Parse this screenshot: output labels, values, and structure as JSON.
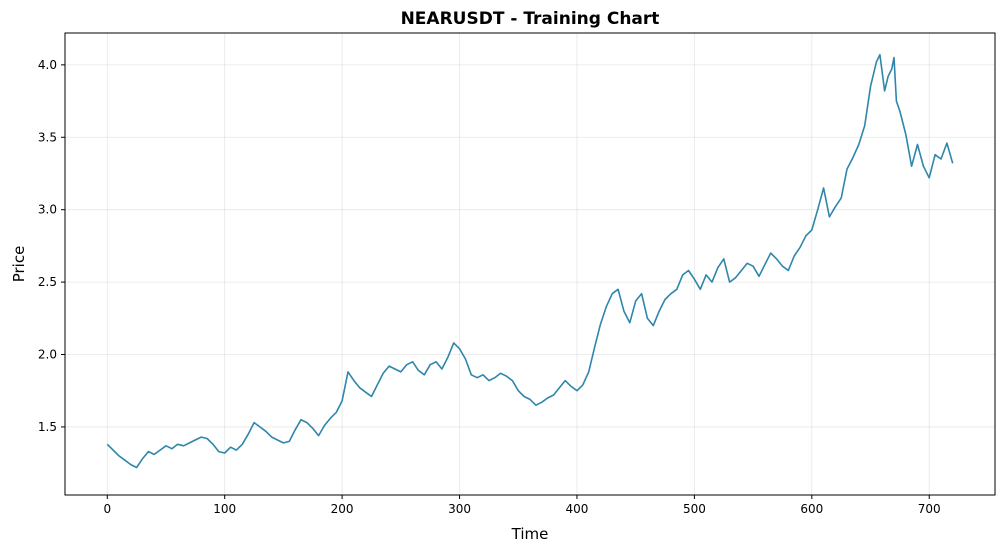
{
  "chart_data": {
    "type": "line",
    "title": "NEARUSDT - Training Chart",
    "xlabel": "Time",
    "ylabel": "Price",
    "xlim": [
      -36,
      756
    ],
    "ylim": [
      1.03,
      4.22
    ],
    "x_ticks": [
      0,
      100,
      200,
      300,
      400,
      500,
      600,
      700
    ],
    "y_ticks": [
      1.5,
      2.0,
      2.5,
      3.0,
      3.5,
      4.0
    ],
    "y_tick_labels": [
      "1.5",
      "2.0",
      "2.5",
      "3.0",
      "3.5",
      "4.0"
    ],
    "grid": true,
    "line_color": "#2e86ab",
    "series": [
      {
        "x": [
          0,
          5,
          10,
          15,
          20,
          25,
          30,
          35,
          40,
          45,
          50,
          55,
          60,
          65,
          70,
          75,
          80,
          85,
          90,
          95,
          100,
          105,
          110,
          115,
          120,
          125,
          130,
          135,
          140,
          145,
          150,
          155,
          160,
          165,
          170,
          175,
          180,
          185,
          190,
          195,
          200,
          205,
          210,
          215,
          220,
          225,
          230,
          235,
          240,
          245,
          250,
          255,
          260,
          265,
          270,
          275,
          280,
          285,
          290,
          295,
          300,
          305,
          310,
          315,
          320,
          325,
          330,
          335,
          340,
          345,
          350,
          355,
          360,
          365,
          370,
          375,
          380,
          385,
          390,
          395,
          400,
          405,
          410,
          415,
          420,
          425,
          430,
          435,
          440,
          445,
          450,
          455,
          460,
          465,
          470,
          475,
          480,
          485,
          490,
          495,
          500,
          505,
          510,
          515,
          520,
          525,
          530,
          535,
          540,
          545,
          550,
          555,
          560,
          565,
          570,
          575,
          580,
          585,
          590,
          595,
          600,
          605,
          610,
          615,
          620,
          625,
          630,
          635,
          640,
          645,
          650,
          655,
          658,
          662,
          665,
          668,
          670,
          672,
          675,
          680,
          685,
          690,
          695,
          700,
          705,
          710,
          715,
          720
        ],
        "y": [
          1.38,
          1.34,
          1.3,
          1.27,
          1.24,
          1.22,
          1.28,
          1.33,
          1.31,
          1.34,
          1.37,
          1.35,
          1.38,
          1.37,
          1.39,
          1.41,
          1.43,
          1.42,
          1.38,
          1.33,
          1.32,
          1.36,
          1.34,
          1.38,
          1.45,
          1.53,
          1.5,
          1.47,
          1.43,
          1.41,
          1.39,
          1.4,
          1.48,
          1.55,
          1.53,
          1.49,
          1.44,
          1.51,
          1.56,
          1.6,
          1.68,
          1.88,
          1.82,
          1.77,
          1.74,
          1.71,
          1.79,
          1.87,
          1.92,
          1.9,
          1.88,
          1.93,
          1.95,
          1.89,
          1.86,
          1.93,
          1.95,
          1.9,
          1.98,
          2.08,
          2.04,
          1.97,
          1.86,
          1.84,
          1.86,
          1.82,
          1.84,
          1.87,
          1.85,
          1.82,
          1.75,
          1.71,
          1.69,
          1.65,
          1.67,
          1.7,
          1.72,
          1.77,
          1.82,
          1.78,
          1.75,
          1.79,
          1.88,
          2.05,
          2.21,
          2.33,
          2.42,
          2.45,
          2.3,
          2.22,
          2.37,
          2.42,
          2.25,
          2.2,
          2.3,
          2.38,
          2.42,
          2.45,
          2.55,
          2.58,
          2.52,
          2.45,
          2.55,
          2.5,
          2.6,
          2.66,
          2.5,
          2.53,
          2.58,
          2.63,
          2.61,
          2.54,
          2.62,
          2.7,
          2.66,
          2.61,
          2.58,
          2.68,
          2.74,
          2.82,
          2.86,
          3.0,
          3.15,
          2.95,
          3.02,
          3.08,
          3.28,
          3.36,
          3.45,
          3.58,
          3.85,
          4.02,
          4.07,
          3.82,
          3.92,
          3.97,
          4.05,
          3.75,
          3.68,
          3.52,
          3.3,
          3.45,
          3.3,
          3.22,
          3.38,
          3.35,
          3.46,
          3.32
        ]
      }
    ]
  }
}
